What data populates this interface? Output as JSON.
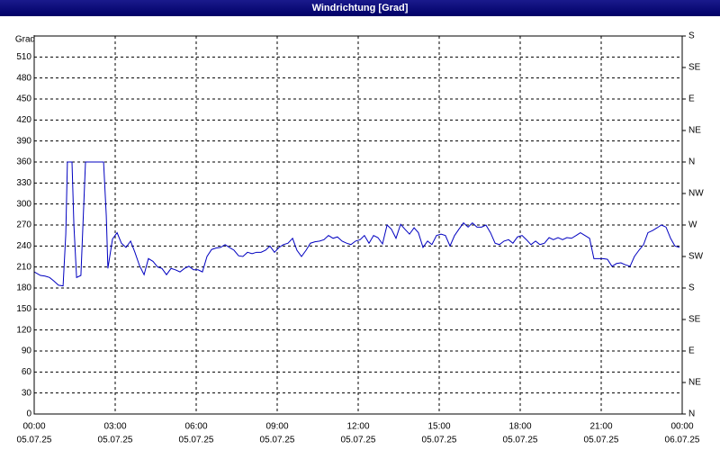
{
  "chart_data": {
    "type": "line",
    "title": "Windrichtung [Grad]",
    "ylabel": "Grad",
    "color": "#0000c0",
    "grid": true,
    "xlim": [
      0,
      24
    ],
    "xticks": [
      {
        "value": 0,
        "label": "00:00"
      },
      {
        "value": 3,
        "label": "03:00"
      },
      {
        "value": 6,
        "label": "06:00"
      },
      {
        "value": 9,
        "label": "09:00"
      },
      {
        "value": 12,
        "label": "12:00"
      },
      {
        "value": 15,
        "label": "15:00"
      },
      {
        "value": 18,
        "label": "18:00"
      },
      {
        "value": 21,
        "label": "21:00"
      },
      {
        "value": 24,
        "label": "00:00"
      }
    ],
    "xtick_dates": [
      "05.07.25",
      "05.07.25",
      "05.07.25",
      "05.07.25",
      "05.07.25",
      "05.07.25",
      "05.07.25",
      "05.07.25",
      "06.07.25"
    ],
    "ylim": [
      0,
      540
    ],
    "yticks": [
      0,
      30,
      60,
      90,
      120,
      150,
      180,
      210,
      240,
      270,
      300,
      330,
      360,
      390,
      420,
      450,
      480,
      510
    ],
    "y2lim": [
      0,
      540
    ],
    "y2ticks": [
      {
        "value": 0,
        "label": "N"
      },
      {
        "value": 45,
        "label": "NE"
      },
      {
        "value": 90,
        "label": "E"
      },
      {
        "value": 135,
        "label": "SE"
      },
      {
        "value": 180,
        "label": "S"
      },
      {
        "value": 225,
        "label": "SW"
      },
      {
        "value": 270,
        "label": "W"
      },
      {
        "value": 315,
        "label": "NW"
      },
      {
        "value": 360,
        "label": "N"
      },
      {
        "value": 405,
        "label": "NE"
      },
      {
        "value": 450,
        "label": "E"
      },
      {
        "value": 495,
        "label": "SE"
      },
      {
        "value": 540,
        "label": "S"
      }
    ],
    "x": [
      0,
      0.23,
      0.4,
      0.57,
      0.73,
      0.9,
      1.07,
      1.17,
      1.23,
      1.4,
      1.47,
      1.57,
      1.73,
      1.9,
      2.57,
      2.67,
      2.73,
      2.9,
      3.07,
      3.23,
      3.4,
      3.57,
      3.73,
      3.9,
      4.07,
      4.23,
      4.4,
      4.57,
      4.73,
      4.9,
      5.07,
      5.23,
      5.4,
      5.57,
      5.73,
      5.9,
      6.07,
      6.23,
      6.4,
      6.57,
      6.73,
      6.9,
      7.07,
      7.23,
      7.4,
      7.57,
      7.73,
      7.9,
      8.07,
      8.23,
      8.4,
      8.57,
      8.73,
      8.9,
      9.07,
      9.23,
      9.4,
      9.57,
      9.73,
      9.9,
      10.07,
      10.23,
      10.4,
      10.57,
      10.73,
      10.9,
      11.07,
      11.23,
      11.4,
      11.57,
      11.73,
      11.9,
      12.07,
      12.23,
      12.4,
      12.57,
      12.73,
      12.9,
      13.07,
      13.23,
      13.4,
      13.57,
      13.73,
      13.9,
      14.07,
      14.23,
      14.4,
      14.57,
      14.73,
      14.9,
      15.07,
      15.23,
      15.4,
      15.57,
      15.73,
      15.9,
      16.07,
      16.23,
      16.4,
      16.57,
      16.73,
      16.9,
      17.07,
      17.23,
      17.4,
      17.57,
      17.73,
      17.9,
      18.07,
      18.23,
      18.4,
      18.57,
      18.73,
      18.9,
      19.07,
      19.23,
      19.4,
      19.57,
      19.73,
      19.9,
      20.07,
      20.23,
      20.4,
      20.57,
      20.73,
      21.07,
      21.23,
      21.4,
      21.57,
      21.73,
      21.9,
      22.07,
      22.23,
      22.4,
      22.57,
      22.73,
      22.9,
      23.07,
      23.23,
      23.4,
      23.57,
      23.73,
      23.9
    ],
    "values": [
      203,
      198,
      197,
      195,
      190,
      184,
      183,
      257,
      360,
      360,
      270,
      195,
      198,
      360,
      360,
      283,
      208,
      250,
      259,
      244,
      238,
      247,
      231,
      212,
      199,
      222,
      218,
      210,
      208,
      199,
      208,
      206,
      203,
      208,
      211,
      206,
      206,
      203,
      225,
      235,
      237,
      238,
      242,
      238,
      234,
      226,
      225,
      231,
      229,
      231,
      231,
      234,
      240,
      231,
      238,
      242,
      244,
      251,
      234,
      225,
      234,
      244,
      246,
      247,
      249,
      255,
      251,
      253,
      247,
      244,
      242,
      247,
      249,
      255,
      244,
      255,
      252,
      243,
      270,
      264,
      251,
      271,
      264,
      257,
      266,
      259,
      238,
      247,
      242,
      255,
      257,
      255,
      240,
      255,
      264,
      273,
      267,
      273,
      267,
      267,
      270,
      259,
      244,
      242,
      247,
      249,
      244,
      253,
      255,
      249,
      242,
      247,
      242,
      244,
      252,
      249,
      252,
      249,
      252,
      251,
      255,
      259,
      255,
      251,
      222,
      222,
      221,
      211,
      215,
      216,
      213,
      211,
      225,
      234,
      242,
      259,
      262,
      266,
      270,
      267,
      251,
      240,
      238
    ]
  }
}
